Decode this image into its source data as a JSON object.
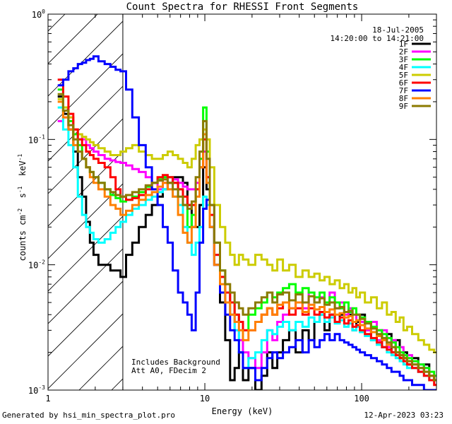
{
  "chart_data": {
    "type": "line",
    "title": "Count Spectra for RHESSI Front Segments",
    "xlabel": "Energy (keV)",
    "ylabel": "counts cm-2 s-1 keV-1",
    "xscale": "log",
    "yscale": "log",
    "xlim": [
      1,
      300
    ],
    "ylim": [
      0.001,
      1
    ],
    "x_tick_labels": [
      "1",
      "10",
      "100"
    ],
    "y_tick_labels": [
      "10-3",
      "10-2",
      "10-1",
      "100"
    ],
    "legend_header": [
      "18-Jul-2005",
      "14:20:00 to 14:21:00"
    ],
    "annotations": [
      "Includes Background",
      "Att A0, FDecim 2"
    ],
    "attenuator_threshold_keV": 3.0,
    "hatch_region_keV": [
      1,
      3
    ],
    "energies_keV": [
      1.2,
      1.3,
      1.4,
      1.5,
      1.6,
      1.7,
      1.8,
      1.9,
      2.0,
      2.2,
      2.4,
      2.6,
      2.8,
      3.0,
      3.3,
      3.6,
      4.0,
      4.4,
      4.8,
      5.2,
      5.6,
      6.0,
      6.5,
      7.0,
      7.5,
      8.0,
      8.5,
      9.0,
      9.5,
      10.0,
      10.5,
      11.0,
      12,
      13,
      14,
      15,
      16,
      17,
      18,
      20,
      22,
      24,
      26,
      28,
      30,
      33,
      36,
      40,
      44,
      48,
      52,
      56,
      60,
      65,
      70,
      75,
      80,
      85,
      90,
      95,
      100,
      110,
      120,
      130,
      140,
      150,
      160,
      170,
      180,
      190,
      200,
      220,
      240,
      260,
      280,
      300
    ],
    "series": [
      {
        "name": "1F",
        "color": "#000000",
        "values": [
          0.22,
          0.16,
          0.12,
          0.08,
          0.05,
          0.035,
          0.022,
          0.015,
          0.012,
          0.01,
          0.01,
          0.009,
          0.009,
          0.008,
          0.012,
          0.015,
          0.02,
          0.025,
          0.03,
          0.035,
          0.04,
          0.045,
          0.05,
          0.05,
          0.045,
          0.03,
          0.02,
          0.02,
          0.03,
          0.06,
          0.04,
          0.02,
          0.01,
          0.005,
          0.0025,
          0.0012,
          0.0015,
          0.002,
          0.0012,
          0.0015,
          0.001,
          0.0013,
          0.002,
          0.0015,
          0.002,
          0.0025,
          0.003,
          0.002,
          0.003,
          0.0025,
          0.0035,
          0.004,
          0.003,
          0.004,
          0.0035,
          0.004,
          0.005,
          0.004,
          0.003,
          0.0035,
          0.004,
          0.003,
          0.0025,
          0.003,
          0.0022,
          0.0028,
          0.002,
          0.0025,
          0.0018,
          0.002,
          0.0016,
          0.0018,
          0.0014,
          0.0016,
          0.0013,
          0.0012
        ]
      },
      {
        "name": "2F",
        "color": "#ff00ff",
        "values": [
          0.14,
          0.15,
          0.15,
          0.12,
          0.11,
          0.1,
          0.09,
          0.085,
          0.08,
          0.075,
          0.07,
          0.068,
          0.066,
          0.065,
          0.062,
          0.058,
          0.055,
          0.05,
          0.045,
          0.04,
          0.045,
          0.05,
          0.048,
          0.045,
          0.042,
          0.04,
          0.04,
          0.045,
          0.06,
          0.08,
          0.05,
          0.03,
          0.012,
          0.008,
          0.006,
          0.004,
          0.003,
          0.0025,
          0.002,
          0.0018,
          0.0015,
          0.002,
          0.003,
          0.0025,
          0.0035,
          0.004,
          0.0045,
          0.005,
          0.0045,
          0.006,
          0.005,
          0.0055,
          0.005,
          0.006,
          0.0045,
          0.005,
          0.004,
          0.0045,
          0.0035,
          0.004,
          0.0035,
          0.003,
          0.0035,
          0.0025,
          0.003,
          0.0022,
          0.0025,
          0.002,
          0.0022,
          0.0018,
          0.0019,
          0.0017,
          0.0016,
          0.0015,
          0.0013,
          0.0012
        ]
      },
      {
        "name": "3F",
        "color": "#00ff00",
        "values": [
          0.25,
          0.18,
          0.14,
          0.11,
          0.09,
          0.07,
          0.06,
          0.055,
          0.05,
          0.045,
          0.04,
          0.036,
          0.034,
          0.032,
          0.033,
          0.035,
          0.038,
          0.042,
          0.045,
          0.048,
          0.05,
          0.05,
          0.045,
          0.04,
          0.03,
          0.02,
          0.025,
          0.04,
          0.07,
          0.18,
          0.08,
          0.03,
          0.015,
          0.009,
          0.006,
          0.005,
          0.004,
          0.0035,
          0.003,
          0.004,
          0.0045,
          0.005,
          0.006,
          0.0055,
          0.006,
          0.0065,
          0.007,
          0.006,
          0.0065,
          0.006,
          0.0055,
          0.006,
          0.005,
          0.0055,
          0.005,
          0.0045,
          0.005,
          0.0042,
          0.0045,
          0.004,
          0.0038,
          0.0035,
          0.0032,
          0.003,
          0.0028,
          0.0026,
          0.0024,
          0.0022,
          0.002,
          0.0019,
          0.0018,
          0.0017,
          0.0016,
          0.0015,
          0.0014,
          0.0013
        ]
      },
      {
        "name": "4F",
        "color": "#00ffff",
        "values": [
          0.18,
          0.12,
          0.09,
          0.06,
          0.035,
          0.025,
          0.02,
          0.018,
          0.016,
          0.015,
          0.016,
          0.018,
          0.02,
          0.022,
          0.025,
          0.028,
          0.03,
          0.033,
          0.035,
          0.038,
          0.04,
          0.04,
          0.035,
          0.03,
          0.02,
          0.015,
          0.012,
          0.015,
          0.02,
          0.035,
          0.03,
          0.02,
          0.012,
          0.008,
          0.005,
          0.004,
          0.003,
          0.002,
          0.0015,
          0.0018,
          0.002,
          0.0025,
          0.003,
          0.0028,
          0.0032,
          0.0035,
          0.003,
          0.0035,
          0.0032,
          0.0038,
          0.0035,
          0.004,
          0.0035,
          0.0038,
          0.0034,
          0.0036,
          0.0032,
          0.0034,
          0.003,
          0.0032,
          0.0029,
          0.0027,
          0.0025,
          0.0023,
          0.0022,
          0.002,
          0.0019,
          0.0018,
          0.0017,
          0.0016,
          0.0015,
          0.0015,
          0.0014,
          0.0013,
          0.0012,
          0.0012
        ]
      },
      {
        "name": "5F",
        "color": "#cccc00",
        "values": [
          0.21,
          0.18,
          0.15,
          0.12,
          0.11,
          0.105,
          0.1,
          0.095,
          0.09,
          0.085,
          0.08,
          0.075,
          0.075,
          0.08,
          0.085,
          0.09,
          0.08,
          0.075,
          0.07,
          0.07,
          0.075,
          0.08,
          0.075,
          0.07,
          0.065,
          0.06,
          0.07,
          0.09,
          0.1,
          0.12,
          0.1,
          0.06,
          0.03,
          0.02,
          0.015,
          0.012,
          0.01,
          0.012,
          0.011,
          0.01,
          0.012,
          0.011,
          0.01,
          0.009,
          0.011,
          0.009,
          0.01,
          0.008,
          0.009,
          0.008,
          0.0085,
          0.0075,
          0.008,
          0.007,
          0.0075,
          0.0065,
          0.007,
          0.006,
          0.0065,
          0.0055,
          0.006,
          0.005,
          0.0055,
          0.0045,
          0.005,
          0.004,
          0.0042,
          0.0035,
          0.0038,
          0.003,
          0.0032,
          0.0028,
          0.0025,
          0.0023,
          0.0021,
          0.002
        ]
      },
      {
        "name": "6F",
        "color": "#ff0000",
        "values": [
          0.3,
          0.22,
          0.16,
          0.12,
          0.1,
          0.09,
          0.08,
          0.075,
          0.07,
          0.065,
          0.06,
          0.05,
          0.04,
          0.035,
          0.033,
          0.034,
          0.036,
          0.04,
          0.045,
          0.05,
          0.052,
          0.05,
          0.045,
          0.04,
          0.035,
          0.03,
          0.03,
          0.04,
          0.06,
          0.1,
          0.05,
          0.025,
          0.012,
          0.008,
          0.006,
          0.005,
          0.004,
          0.0035,
          0.003,
          0.003,
          0.0035,
          0.004,
          0.0045,
          0.004,
          0.0045,
          0.005,
          0.004,
          0.0045,
          0.004,
          0.0045,
          0.004,
          0.0042,
          0.0038,
          0.004,
          0.0035,
          0.0038,
          0.0034,
          0.0036,
          0.0032,
          0.0033,
          0.003,
          0.0028,
          0.0026,
          0.0024,
          0.0022,
          0.0021,
          0.002,
          0.0019,
          0.0018,
          0.0017,
          0.0016,
          0.0015,
          0.0014,
          0.0013,
          0.0012,
          0.0011
        ]
      },
      {
        "name": "7F",
        "color": "#0000ff",
        "values": [
          0.27,
          0.3,
          0.35,
          0.37,
          0.4,
          0.41,
          0.43,
          0.44,
          0.46,
          0.42,
          0.4,
          0.38,
          0.36,
          0.35,
          0.25,
          0.15,
          0.09,
          0.06,
          0.04,
          0.03,
          0.02,
          0.015,
          0.009,
          0.006,
          0.005,
          0.004,
          0.003,
          0.006,
          0.015,
          0.028,
          0.033,
          0.02,
          0.01,
          0.006,
          0.004,
          0.003,
          0.0025,
          0.002,
          0.0015,
          0.0015,
          0.0012,
          0.0015,
          0.0018,
          0.002,
          0.0018,
          0.002,
          0.0022,
          0.0025,
          0.002,
          0.0025,
          0.0022,
          0.0025,
          0.0028,
          0.0025,
          0.0028,
          0.0025,
          0.0024,
          0.0023,
          0.0022,
          0.0021,
          0.002,
          0.0019,
          0.0018,
          0.0017,
          0.0016,
          0.0015,
          0.0014,
          0.0014,
          0.0013,
          0.0012,
          0.0012,
          0.0011,
          0.0011,
          0.001,
          0.001,
          0.001
        ]
      },
      {
        "name": "8F",
        "color": "#ff8000",
        "values": [
          0.2,
          0.15,
          0.12,
          0.09,
          0.08,
          0.07,
          0.06,
          0.05,
          0.045,
          0.04,
          0.035,
          0.03,
          0.028,
          0.025,
          0.027,
          0.03,
          0.033,
          0.036,
          0.038,
          0.042,
          0.045,
          0.04,
          0.035,
          0.025,
          0.018,
          0.015,
          0.02,
          0.035,
          0.06,
          0.11,
          0.045,
          0.02,
          0.01,
          0.007,
          0.005,
          0.004,
          0.0035,
          0.003,
          0.0025,
          0.003,
          0.0035,
          0.004,
          0.0045,
          0.004,
          0.0048,
          0.005,
          0.0045,
          0.005,
          0.0042,
          0.0048,
          0.0044,
          0.0046,
          0.0042,
          0.0044,
          0.004,
          0.0041,
          0.0038,
          0.0039,
          0.0035,
          0.0036,
          0.0033,
          0.0031,
          0.0029,
          0.0027,
          0.0025,
          0.0023,
          0.0022,
          0.002,
          0.0019,
          0.0018,
          0.0017,
          0.0016,
          0.0015,
          0.0014,
          0.0013,
          0.0012
        ]
      },
      {
        "name": "9F",
        "color": "#8b7a00",
        "values": [
          0.23,
          0.17,
          0.13,
          0.1,
          0.08,
          0.07,
          0.06,
          0.055,
          0.05,
          0.045,
          0.04,
          0.038,
          0.036,
          0.035,
          0.036,
          0.038,
          0.04,
          0.043,
          0.045,
          0.047,
          0.048,
          0.045,
          0.04,
          0.035,
          0.03,
          0.028,
          0.032,
          0.05,
          0.08,
          0.14,
          0.07,
          0.03,
          0.015,
          0.009,
          0.007,
          0.006,
          0.005,
          0.0045,
          0.004,
          0.0045,
          0.005,
          0.0055,
          0.006,
          0.005,
          0.0058,
          0.006,
          0.0052,
          0.0058,
          0.005,
          0.0056,
          0.005,
          0.0054,
          0.0048,
          0.005,
          0.0045,
          0.0046,
          0.0042,
          0.0043,
          0.004,
          0.004,
          0.0037,
          0.0034,
          0.0031,
          0.0028,
          0.0026,
          0.0024,
          0.0022,
          0.002,
          0.0019,
          0.0018,
          0.0017,
          0.0016,
          0.0015,
          0.0014,
          0.0013,
          0.0012
        ]
      }
    ]
  },
  "footer": {
    "left": "Generated by hsi_min_spectra_plot.pro",
    "right": "12-Apr-2023 03:23"
  }
}
